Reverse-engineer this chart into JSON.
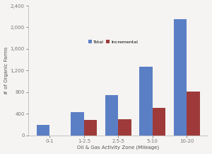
{
  "categories": [
    "0-1",
    "1-2.5",
    "2.5-5",
    "5-10",
    "10-20"
  ],
  "total": [
    190,
    430,
    740,
    1270,
    2150
  ],
  "incremental": [
    0,
    280,
    295,
    510,
    810
  ],
  "bar_color_total": "#5b7fc5",
  "bar_color_incremental": "#9e3b3a",
  "xlabel": "Oil & Gas Activity Zone (Mileage)",
  "ylabel": "# of Organic Farms",
  "ylim": [
    0,
    2400
  ],
  "yticks": [
    0,
    400,
    800,
    1200,
    1600,
    2000,
    2400
  ],
  "legend_labels": [
    "Total",
    "Incremental"
  ],
  "background_color": "#f5f4f2",
  "bar_width": 0.38
}
